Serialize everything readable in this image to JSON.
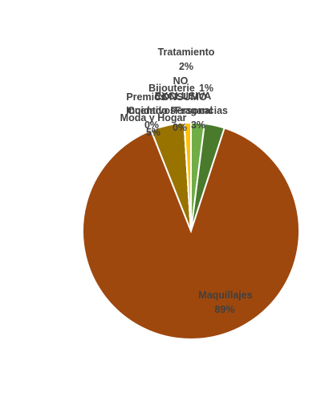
{
  "chart_data": {
    "type": "pie",
    "title": "",
    "slices": [
      {
        "name": "Tratamiento",
        "value": 2,
        "label": "2%",
        "color": "#70ad47"
      },
      {
        "name": "Fragancias",
        "value": 3,
        "label": "3%",
        "color": "#4a7a2c"
      },
      {
        "name": "NO EXCLUSIVA",
        "value": 0,
        "label": "0%",
        "color": "#9e480e"
      },
      {
        "name": "CONSUMO",
        "value": 0,
        "label": "0%",
        "color": "#5b9bd5"
      },
      {
        "name": "Bijouterie",
        "value": 1,
        "label": "1%",
        "color": "#ffc000"
      },
      {
        "name": "Premios",
        "value": 0,
        "label": "0%",
        "color": "#a5a5a5"
      },
      {
        "name": "Incentivos",
        "value": 0,
        "label": "0%",
        "color": "#ed7d31"
      },
      {
        "name": "Cuidado Personal",
        "value": 0,
        "label": "0%",
        "color": "#4472c4"
      },
      {
        "name": "Moda y Hogar",
        "value": 5,
        "label": "5%",
        "color": "#997300"
      },
      {
        "name": "Maquillajes",
        "value": 89,
        "label": "89%",
        "color": "#9e480e"
      }
    ]
  }
}
